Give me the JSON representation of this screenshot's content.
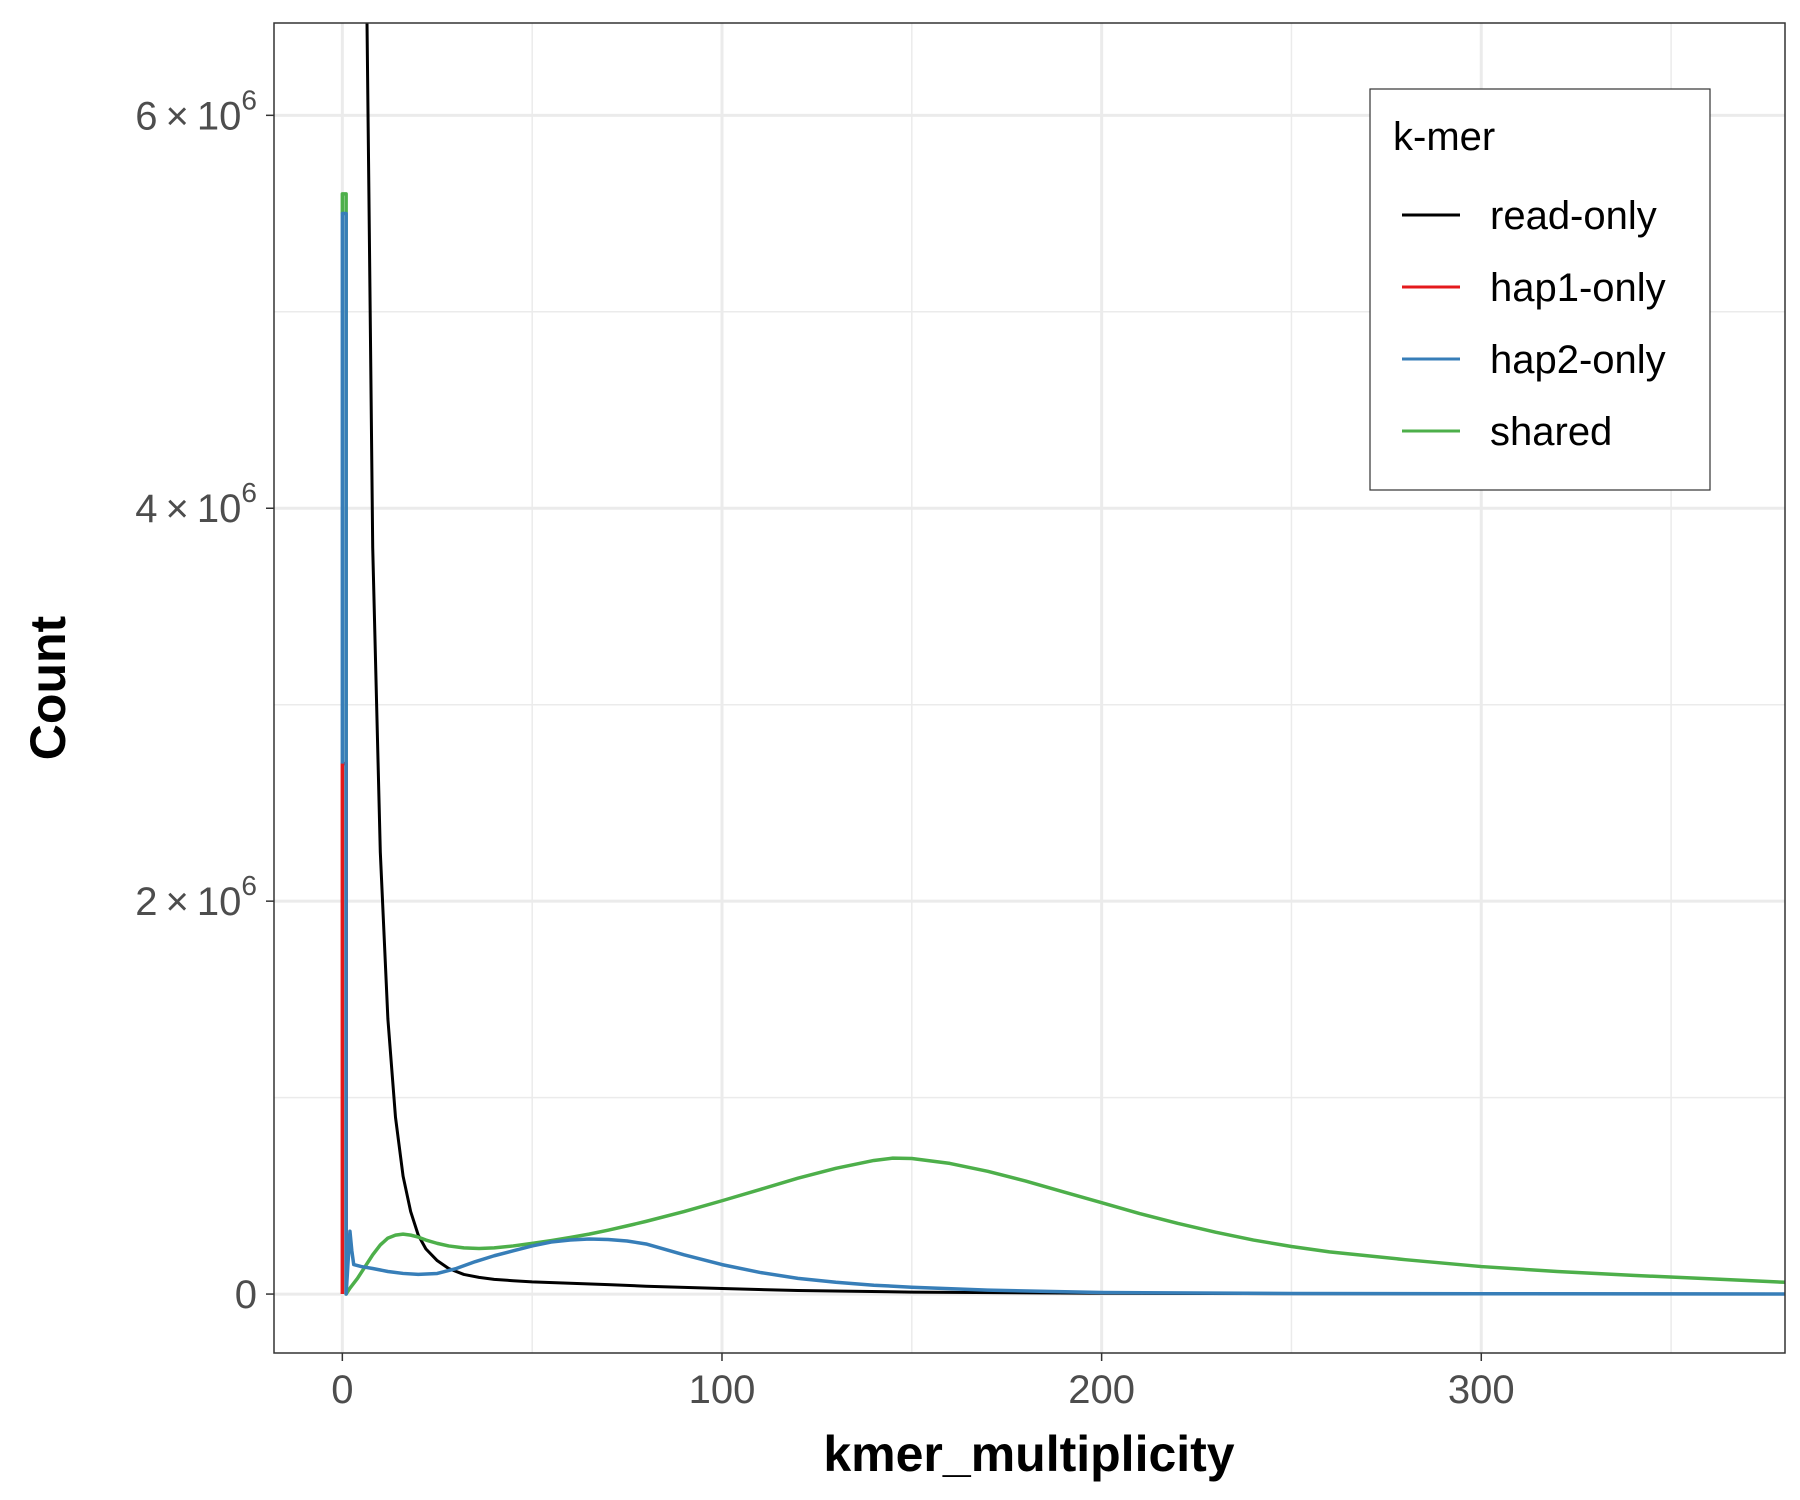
{
  "chart_data": {
    "type": "line",
    "title": "",
    "xlabel": "kmer_multiplicity",
    "ylabel": "Count",
    "xlim": [
      -18,
      380
    ],
    "ylim": [
      -300000,
      6470000
    ],
    "x_ticks": [
      0,
      100,
      200,
      300
    ],
    "x_tick_labels": [
      "0",
      "100",
      "200",
      "300"
    ],
    "y_ticks": [
      0,
      2000000,
      4000000,
      6000000
    ],
    "y_tick_labels": [
      {
        "mantissa": "0",
        "exponent": ""
      },
      {
        "mantissa": "2",
        "exponent": "6"
      },
      {
        "mantissa": "4",
        "exponent": "6"
      },
      {
        "mantissa": "6",
        "exponent": "6"
      }
    ],
    "grid": true,
    "legend": {
      "title": "k-mer",
      "position": "top-right",
      "entries": [
        "read-only",
        "hap1-only",
        "hap2-only",
        "shared"
      ]
    },
    "colors": {
      "read-only": "#000000",
      "hap1-only": "#e41a1c",
      "hap2-only": "#377eb8",
      "shared": "#4daf4a"
    },
    "series": [
      {
        "name": "read-only",
        "x": [
          6.5,
          7,
          8,
          10,
          12,
          14,
          16,
          18,
          20,
          22,
          25,
          28,
          32,
          36,
          40,
          45,
          50,
          60,
          70,
          80,
          100,
          120,
          150,
          200,
          250,
          300,
          380
        ],
        "y": [
          6470000,
          5600000,
          3800000,
          2250000,
          1400000,
          900000,
          600000,
          420000,
          300000,
          230000,
          170000,
          130000,
          100000,
          85000,
          75000,
          68000,
          62000,
          55000,
          48000,
          40000,
          28000,
          18000,
          10000,
          4000,
          2000,
          1000,
          500
        ]
      },
      {
        "name": "hap1-only",
        "x": [
          0,
          0,
          1,
          1
        ],
        "y": [
          0,
          2700000,
          2700000,
          0
        ]
      },
      {
        "name": "hap2-only",
        "x": [
          0,
          0,
          1,
          1,
          2,
          2.5,
          3,
          5,
          8,
          12,
          16,
          20,
          25,
          30,
          35,
          40,
          45,
          50,
          55,
          60,
          65,
          70,
          75,
          80,
          90,
          100,
          110,
          120,
          130,
          140,
          150,
          170,
          200,
          250,
          300,
          380
        ],
        "y": [
          2700000,
          5500000,
          5500000,
          0,
          320000,
          220000,
          150000,
          140000,
          130000,
          115000,
          105000,
          100000,
          105000,
          130000,
          165000,
          195000,
          220000,
          245000,
          265000,
          275000,
          280000,
          278000,
          270000,
          255000,
          200000,
          150000,
          110000,
          80000,
          60000,
          45000,
          35000,
          20000,
          8000,
          3000,
          1500,
          500
        ]
      },
      {
        "name": "shared",
        "x": [
          0,
          0,
          1,
          1,
          2,
          4,
          6,
          8,
          10,
          12,
          14,
          16,
          18,
          20,
          22,
          25,
          28,
          32,
          36,
          40,
          45,
          50,
          55,
          60,
          65,
          70,
          75,
          80,
          90,
          100,
          110,
          120,
          130,
          140,
          145,
          150,
          160,
          170,
          180,
          190,
          200,
          210,
          220,
          230,
          240,
          250,
          260,
          280,
          300,
          320,
          340,
          360,
          380
        ],
        "y": [
          5500000,
          5600000,
          5600000,
          0,
          30000,
          80000,
          140000,
          200000,
          250000,
          285000,
          300000,
          305000,
          300000,
          290000,
          275000,
          258000,
          245000,
          235000,
          232000,
          235000,
          245000,
          258000,
          272000,
          288000,
          305000,
          325000,
          347000,
          370000,
          420000,
          475000,
          532000,
          590000,
          640000,
          680000,
          692000,
          690000,
          665000,
          625000,
          575000,
          520000,
          465000,
          410000,
          360000,
          315000,
          275000,
          242000,
          215000,
          175000,
          140000,
          115000,
          95000,
          78000,
          60000
        ]
      }
    ]
  }
}
